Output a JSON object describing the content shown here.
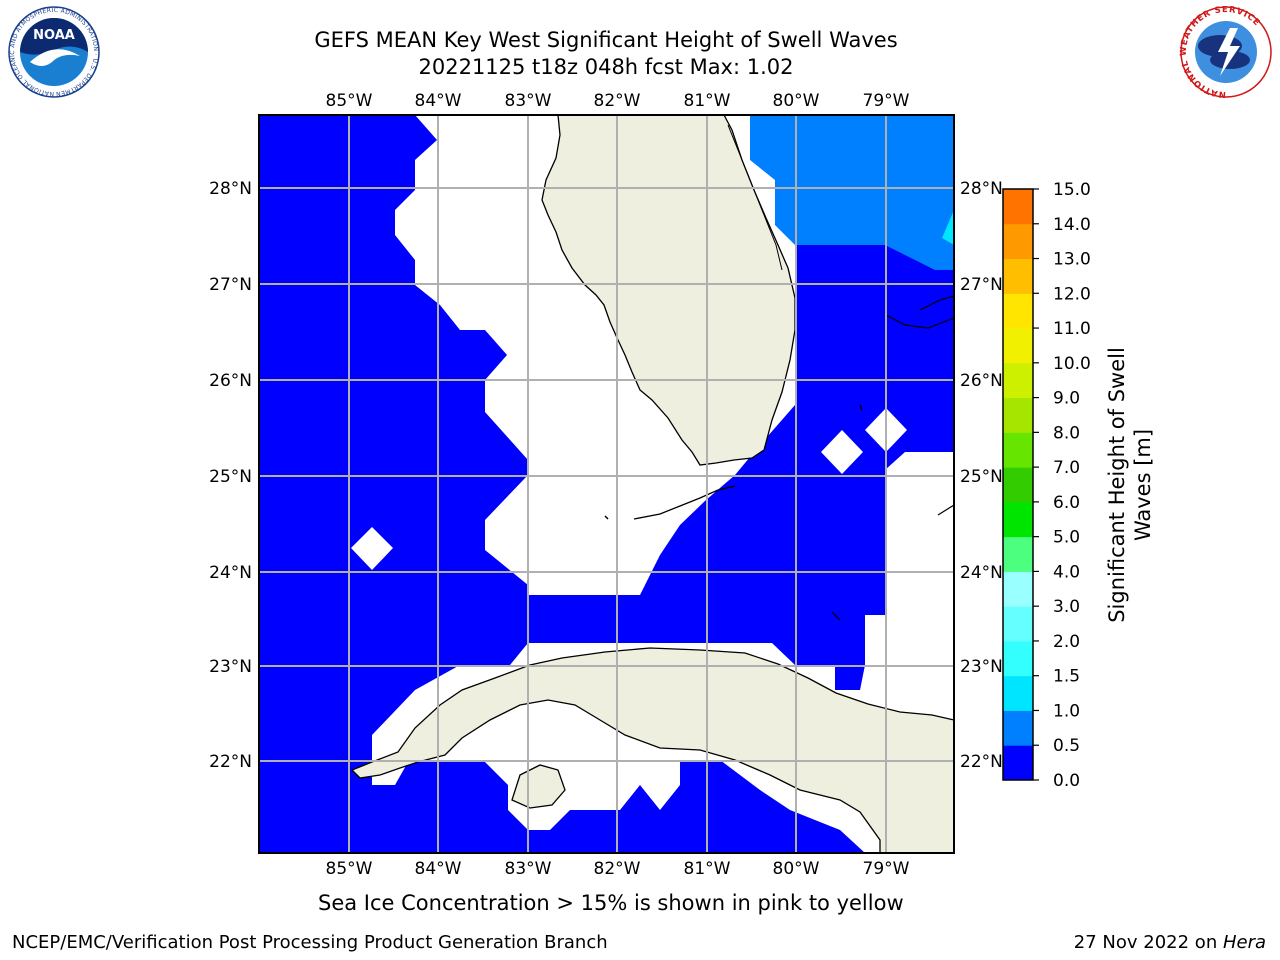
{
  "header": {
    "title_line1": "GEFS MEAN Key West Significant Height of Swell Waves",
    "title_line2": "20221125 t18z 048h fcst   Max: 1.02"
  },
  "logos": {
    "noaa_text": "NOAA",
    "noaa_ring_text": "NATIONAL OCEANIC AND ATMOSPHERIC ADMINISTRATION · U.S. DEPARTMENT OF COMMERCE",
    "nws_ring_text": "NATIONAL WEATHER SERVICE"
  },
  "map": {
    "lon_labels": [
      "85°W",
      "84°W",
      "83°W",
      "82°W",
      "81°W",
      "80°W",
      "79°W"
    ],
    "lat_labels": [
      "28°N",
      "27°N",
      "26°N",
      "25°N",
      "24°N",
      "23°N",
      "22°N"
    ],
    "colors": {
      "land": "#efefdf",
      "no_data": "#ffffff",
      "grid": "#b0b0b0"
    },
    "color_classes_present": [
      "0.0-0.5",
      "0.5-1.0",
      "1.0-1.5"
    ]
  },
  "colorbar": {
    "label_line1": "Significant Height of Swell",
    "label_line2": "Waves [m]",
    "ticks": [
      "0.0",
      "0.5",
      "1.0",
      "1.5",
      "2.0",
      "3.0",
      "4.0",
      "5.0",
      "6.0",
      "7.0",
      "8.0",
      "9.0",
      "10.0",
      "11.0",
      "12.0",
      "13.0",
      "14.0",
      "15.0"
    ],
    "colors": [
      "#0000ff",
      "#007fff",
      "#00e5ff",
      "#33ffff",
      "#66ffff",
      "#99ffff",
      "#4cff7f",
      "#00e500",
      "#33cc00",
      "#66e500",
      "#a5e500",
      "#ccf000",
      "#f0f000",
      "#ffe500",
      "#ffbf00",
      "#ff9900",
      "#ff7300",
      "#ff4c00",
      "#ff0000"
    ]
  },
  "footer": {
    "sea_ice_note": "Sea Ice Concentration > 15% is shown in pink to yellow",
    "branch": "NCEP/EMC/Verification Post Processing Product Generation Branch",
    "date_prefix": "27 Nov 2022 on ",
    "machine": "Hera"
  }
}
